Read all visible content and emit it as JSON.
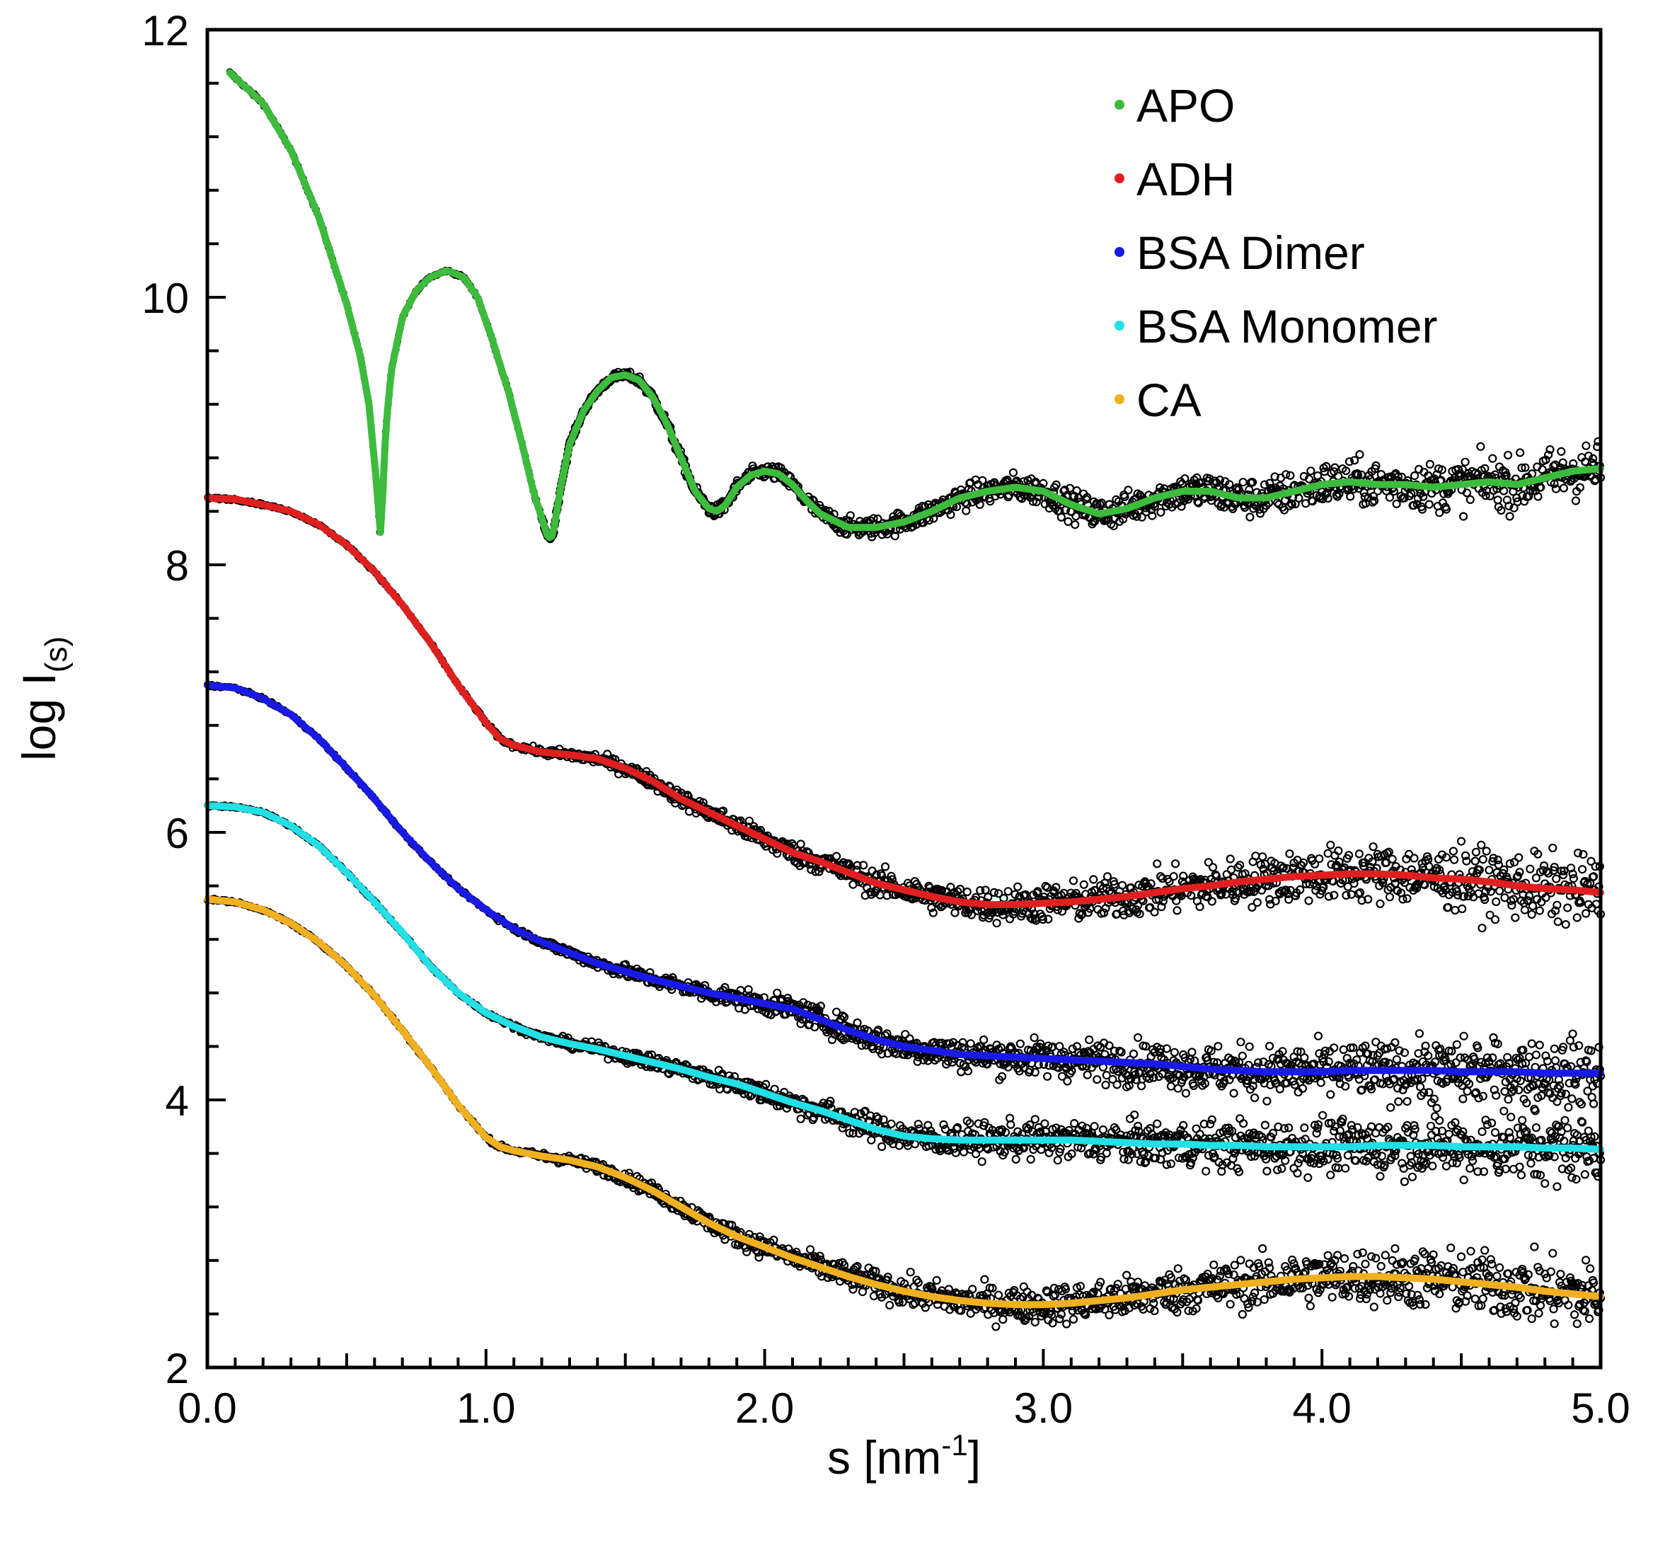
{
  "chart_data": {
    "type": "scatter",
    "title": "",
    "xlabel": "s [nm",
    "xlabel_sup": "-1",
    "xlabel_end": "]",
    "ylabel": "log I",
    "ylabel_sub": "(s)",
    "xlim": [
      0,
      5
    ],
    "ylim": [
      2,
      12
    ],
    "x_ticks": [
      {
        "value": 0,
        "label": "0.0"
      },
      {
        "value": 1,
        "label": "1.0"
      },
      {
        "value": 2,
        "label": "2.0"
      },
      {
        "value": 3,
        "label": "3.0"
      },
      {
        "value": 4,
        "label": "4.0"
      },
      {
        "value": 5,
        "label": "5.0"
      }
    ],
    "y_ticks": [
      {
        "value": 2,
        "label": "2"
      },
      {
        "value": 4,
        "label": "4"
      },
      {
        "value": 6,
        "label": "6"
      },
      {
        "value": 8,
        "label": "8"
      },
      {
        "value": 10,
        "label": "10"
      },
      {
        "value": 12,
        "label": "12"
      }
    ],
    "grid": false,
    "legend_position": "top-right",
    "experimental_points_color": "#000000",
    "series": [
      {
        "name": "APO",
        "color": "#3dbb3d",
        "x": [
          0.08,
          0.2,
          0.3,
          0.4,
          0.5,
          0.55,
          0.58,
          0.61,
          0.62,
          0.63,
          0.64,
          0.66,
          0.7,
          0.75,
          0.8,
          0.86,
          0.92,
          0.97,
          1.02,
          1.08,
          1.13,
          1.17,
          1.2,
          1.22,
          1.23,
          1.24,
          1.25,
          1.27,
          1.3,
          1.35,
          1.4,
          1.45,
          1.5,
          1.55,
          1.6,
          1.65,
          1.7,
          1.75,
          1.8,
          1.83,
          1.86,
          1.9,
          1.95,
          2.0,
          2.05,
          2.1,
          2.15,
          2.2,
          2.3,
          2.4,
          2.5,
          2.6,
          2.7,
          2.8,
          2.9,
          3.0,
          3.1,
          3.2,
          3.3,
          3.4,
          3.5,
          3.6,
          3.7,
          3.8,
          3.9,
          4.0,
          4.1,
          4.2,
          4.3,
          4.4,
          4.5,
          4.6,
          4.7,
          4.8,
          4.9,
          5.0
        ],
        "values": [
          11.68,
          11.45,
          11.1,
          10.6,
          9.95,
          9.55,
          9.2,
          8.55,
          8.2,
          8.55,
          9.0,
          9.45,
          9.85,
          10.05,
          10.15,
          10.2,
          10.15,
          10.0,
          9.7,
          9.3,
          8.9,
          8.55,
          8.35,
          8.22,
          8.2,
          8.22,
          8.35,
          8.6,
          8.9,
          9.15,
          9.3,
          9.4,
          9.42,
          9.38,
          9.25,
          9.05,
          8.8,
          8.55,
          8.42,
          8.4,
          8.45,
          8.58,
          8.67,
          8.7,
          8.68,
          8.6,
          8.48,
          8.38,
          8.28,
          8.28,
          8.32,
          8.4,
          8.5,
          8.55,
          8.58,
          8.55,
          8.45,
          8.38,
          8.42,
          8.5,
          8.55,
          8.55,
          8.5,
          8.5,
          8.55,
          8.6,
          8.62,
          8.6,
          8.6,
          8.58,
          8.6,
          8.62,
          8.6,
          8.65,
          8.7,
          8.72
        ]
      },
      {
        "name": "ADH",
        "color": "#e02020",
        "x": [
          0,
          0.1,
          0.2,
          0.3,
          0.4,
          0.5,
          0.6,
          0.7,
          0.8,
          0.9,
          1.0,
          1.05,
          1.1,
          1.2,
          1.3,
          1.4,
          1.5,
          1.6,
          1.7,
          1.8,
          1.9,
          2.0,
          2.1,
          2.2,
          2.3,
          2.4,
          2.5,
          2.6,
          2.7,
          2.8,
          2.9,
          3.0,
          3.1,
          3.2,
          3.3,
          3.4,
          3.5,
          3.6,
          3.7,
          3.8,
          3.9,
          4.0,
          4.1,
          4.2,
          4.3,
          4.4,
          4.5,
          4.6,
          4.7,
          4.8,
          4.9,
          5.0
        ],
        "values": [
          8.5,
          8.49,
          8.45,
          8.4,
          8.3,
          8.15,
          7.95,
          7.7,
          7.42,
          7.1,
          6.82,
          6.7,
          6.65,
          6.6,
          6.58,
          6.55,
          6.48,
          6.38,
          6.25,
          6.15,
          6.05,
          5.95,
          5.85,
          5.78,
          5.7,
          5.62,
          5.57,
          5.52,
          5.48,
          5.46,
          5.46,
          5.47,
          5.48,
          5.5,
          5.52,
          5.55,
          5.58,
          5.6,
          5.63,
          5.65,
          5.67,
          5.68,
          5.69,
          5.69,
          5.68,
          5.66,
          5.65,
          5.63,
          5.6,
          5.58,
          5.57,
          5.55
        ]
      },
      {
        "name": "BSA Dimer",
        "color": "#1a1ae6",
        "x": [
          0,
          0.1,
          0.2,
          0.3,
          0.4,
          0.5,
          0.6,
          0.7,
          0.8,
          0.9,
          1.0,
          1.1,
          1.2,
          1.3,
          1.4,
          1.5,
          1.6,
          1.7,
          1.8,
          1.9,
          2.0,
          2.1,
          2.2,
          2.3,
          2.4,
          2.5,
          2.6,
          2.7,
          2.8,
          2.9,
          3.0,
          3.1,
          3.2,
          3.3,
          3.4,
          3.5,
          3.6,
          3.7,
          3.8,
          3.9,
          4.0,
          4.1,
          4.2,
          4.3,
          4.4,
          4.5,
          4.6,
          4.7,
          4.8,
          4.9,
          5.0
        ],
        "values": [
          7.1,
          7.08,
          7.0,
          6.88,
          6.7,
          6.48,
          6.25,
          6.0,
          5.78,
          5.58,
          5.42,
          5.28,
          5.18,
          5.1,
          5.02,
          4.96,
          4.9,
          4.85,
          4.8,
          4.76,
          4.72,
          4.68,
          4.6,
          4.52,
          4.45,
          4.4,
          4.37,
          4.34,
          4.33,
          4.32,
          4.31,
          4.3,
          4.29,
          4.28,
          4.27,
          4.25,
          4.23,
          4.22,
          4.21,
          4.21,
          4.21,
          4.22,
          4.22,
          4.22,
          4.22,
          4.21,
          4.21,
          4.21,
          4.2,
          4.2,
          4.2
        ]
      },
      {
        "name": "BSA Monomer",
        "color": "#22e0e6",
        "x": [
          0,
          0.1,
          0.2,
          0.3,
          0.4,
          0.5,
          0.6,
          0.7,
          0.8,
          0.9,
          1.0,
          1.1,
          1.2,
          1.3,
          1.4,
          1.5,
          1.6,
          1.7,
          1.8,
          1.9,
          2.0,
          2.1,
          2.2,
          2.3,
          2.4,
          2.5,
          2.6,
          2.7,
          2.8,
          2.9,
          3.0,
          3.1,
          3.2,
          3.3,
          3.4,
          3.5,
          3.6,
          3.7,
          3.8,
          3.9,
          4.0,
          4.1,
          4.2,
          4.3,
          4.4,
          4.5,
          4.6,
          4.7,
          4.8,
          4.9,
          5.0
        ],
        "values": [
          6.2,
          6.19,
          6.15,
          6.05,
          5.9,
          5.7,
          5.48,
          5.25,
          5.0,
          4.8,
          4.65,
          4.55,
          4.47,
          4.42,
          4.38,
          4.33,
          4.28,
          4.23,
          4.17,
          4.12,
          4.05,
          3.98,
          3.92,
          3.85,
          3.78,
          3.73,
          3.71,
          3.7,
          3.7,
          3.7,
          3.7,
          3.7,
          3.69,
          3.68,
          3.67,
          3.67,
          3.66,
          3.66,
          3.65,
          3.65,
          3.65,
          3.65,
          3.66,
          3.66,
          3.66,
          3.65,
          3.65,
          3.65,
          3.64,
          3.64,
          3.63
        ]
      },
      {
        "name": "CA",
        "color": "#f0b020",
        "x": [
          0,
          0.1,
          0.2,
          0.3,
          0.4,
          0.5,
          0.6,
          0.7,
          0.8,
          0.9,
          1.0,
          1.05,
          1.1,
          1.2,
          1.3,
          1.4,
          1.5,
          1.6,
          1.7,
          1.8,
          1.9,
          2.0,
          2.1,
          2.2,
          2.3,
          2.4,
          2.5,
          2.6,
          2.7,
          2.8,
          2.9,
          3.0,
          3.1,
          3.2,
          3.3,
          3.4,
          3.5,
          3.6,
          3.7,
          3.8,
          3.9,
          4.0,
          4.1,
          4.2,
          4.3,
          4.4,
          4.5,
          4.6,
          4.7,
          4.8,
          4.9,
          5.0
        ],
        "values": [
          5.5,
          5.48,
          5.42,
          5.32,
          5.18,
          5.0,
          4.78,
          4.52,
          4.25,
          3.96,
          3.72,
          3.65,
          3.62,
          3.58,
          3.55,
          3.5,
          3.42,
          3.32,
          3.2,
          3.08,
          2.98,
          2.9,
          2.82,
          2.75,
          2.68,
          2.62,
          2.57,
          2.53,
          2.5,
          2.48,
          2.47,
          2.47,
          2.48,
          2.5,
          2.52,
          2.55,
          2.58,
          2.6,
          2.62,
          2.64,
          2.66,
          2.67,
          2.68,
          2.68,
          2.67,
          2.66,
          2.64,
          2.62,
          2.6,
          2.57,
          2.55,
          2.53
        ]
      }
    ]
  }
}
